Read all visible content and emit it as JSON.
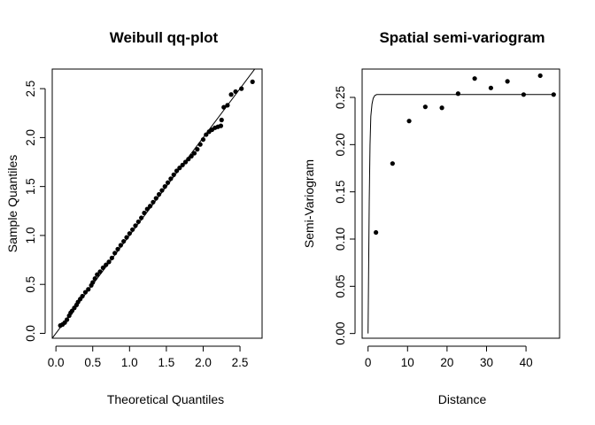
{
  "chart_data": [
    {
      "type": "scatter",
      "title": "Weibull qq-plot",
      "xlabel": "Theoretical Quantiles",
      "ylabel": "Sample Quantiles",
      "xlim": [
        -0.05,
        2.8
      ],
      "ylim": [
        -0.05,
        2.7
      ],
      "xticks": [
        0.0,
        0.5,
        1.0,
        1.5,
        2.0,
        2.5
      ],
      "xtick_labels": [
        "0.0",
        "0.5",
        "1.0",
        "1.5",
        "2.0",
        "2.5"
      ],
      "yticks": [
        0.0,
        0.5,
        1.0,
        1.5,
        2.0,
        2.5
      ],
      "ytick_labels": [
        "0.0",
        "0.5",
        "1.0",
        "1.5",
        "2.0",
        "2.5"
      ],
      "grid": false,
      "reference_line": {
        "intercept": 0.0,
        "slope": 1.0
      },
      "points": [
        [
          0.06,
          0.08
        ],
        [
          0.09,
          0.09
        ],
        [
          0.12,
          0.11
        ],
        [
          0.15,
          0.14
        ],
        [
          0.18,
          0.18
        ],
        [
          0.2,
          0.21
        ],
        [
          0.22,
          0.23
        ],
        [
          0.25,
          0.26
        ],
        [
          0.28,
          0.29
        ],
        [
          0.3,
          0.32
        ],
        [
          0.33,
          0.35
        ],
        [
          0.36,
          0.38
        ],
        [
          0.4,
          0.42
        ],
        [
          0.44,
          0.45
        ],
        [
          0.48,
          0.49
        ],
        [
          0.5,
          0.52
        ],
        [
          0.53,
          0.56
        ],
        [
          0.56,
          0.6
        ],
        [
          0.6,
          0.63
        ],
        [
          0.64,
          0.67
        ],
        [
          0.68,
          0.7
        ],
        [
          0.72,
          0.73
        ],
        [
          0.76,
          0.77
        ],
        [
          0.8,
          0.82
        ],
        [
          0.84,
          0.86
        ],
        [
          0.88,
          0.9
        ],
        [
          0.92,
          0.94
        ],
        [
          0.96,
          0.98
        ],
        [
          1.0,
          1.02
        ],
        [
          1.04,
          1.06
        ],
        [
          1.08,
          1.1
        ],
        [
          1.12,
          1.14
        ],
        [
          1.16,
          1.18
        ],
        [
          1.2,
          1.23
        ],
        [
          1.24,
          1.27
        ],
        [
          1.28,
          1.3
        ],
        [
          1.32,
          1.34
        ],
        [
          1.36,
          1.38
        ],
        [
          1.4,
          1.42
        ],
        [
          1.44,
          1.46
        ],
        [
          1.48,
          1.5
        ],
        [
          1.52,
          1.54
        ],
        [
          1.56,
          1.58
        ],
        [
          1.6,
          1.62
        ],
        [
          1.64,
          1.66
        ],
        [
          1.68,
          1.69
        ],
        [
          1.72,
          1.72
        ],
        [
          1.76,
          1.75
        ],
        [
          1.8,
          1.78
        ],
        [
          1.84,
          1.81
        ],
        [
          1.88,
          1.84
        ],
        [
          1.92,
          1.88
        ],
        [
          1.96,
          1.93
        ],
        [
          2.0,
          1.98
        ],
        [
          2.04,
          2.03
        ],
        [
          2.08,
          2.06
        ],
        [
          2.12,
          2.08
        ],
        [
          2.16,
          2.1
        ],
        [
          2.2,
          2.11
        ],
        [
          2.24,
          2.12
        ],
        [
          2.25,
          2.18
        ],
        [
          2.28,
          2.31
        ],
        [
          2.33,
          2.33
        ],
        [
          2.38,
          2.44
        ],
        [
          2.44,
          2.47
        ],
        [
          2.52,
          2.5
        ],
        [
          2.67,
          2.57
        ]
      ]
    },
    {
      "type": "scatter",
      "title": "Spatial semi-variogram",
      "xlabel": "Distance",
      "ylabel": "Semi-Variogram",
      "xlim": [
        -1.5,
        48.5
      ],
      "ylim": [
        -0.005,
        0.28
      ],
      "xticks": [
        0,
        10,
        20,
        30,
        40
      ],
      "xtick_labels": [
        "0",
        "10",
        "20",
        "30",
        "40"
      ],
      "yticks": [
        0.0,
        0.05,
        0.1,
        0.15,
        0.2,
        0.25
      ],
      "ytick_labels": [
        "0.00",
        "0.05",
        "0.10",
        "0.15",
        "0.20",
        "0.25"
      ],
      "grid": false,
      "fitted_curve": [
        [
          0.0,
          0.0
        ],
        [
          0.15,
          0.07
        ],
        [
          0.3,
          0.14
        ],
        [
          0.5,
          0.2
        ],
        [
          0.7,
          0.23
        ],
        [
          1.0,
          0.243
        ],
        [
          1.3,
          0.249
        ],
        [
          1.7,
          0.252
        ],
        [
          2.2,
          0.253
        ],
        [
          4.0,
          0.253
        ],
        [
          47.0,
          0.253
        ]
      ],
      "points": [
        [
          2.0,
          0.107
        ],
        [
          6.2,
          0.18
        ],
        [
          10.4,
          0.225
        ],
        [
          14.5,
          0.24
        ],
        [
          18.7,
          0.239
        ],
        [
          22.8,
          0.254
        ],
        [
          27.0,
          0.27
        ],
        [
          31.1,
          0.26
        ],
        [
          35.3,
          0.267
        ],
        [
          39.4,
          0.253
        ],
        [
          43.6,
          0.273
        ],
        [
          47.0,
          0.253
        ]
      ]
    }
  ]
}
